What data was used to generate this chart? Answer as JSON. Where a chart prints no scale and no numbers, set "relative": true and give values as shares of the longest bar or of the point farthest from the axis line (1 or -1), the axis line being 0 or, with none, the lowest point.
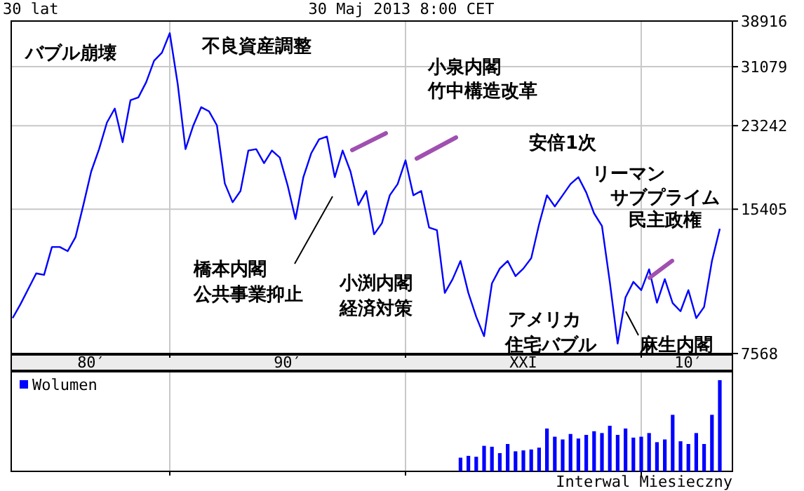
{
  "chart_data": [
    {
      "type": "line",
      "title": "30 lat",
      "subtitle": "30 Maj 2013 8:00 CET",
      "categories": [
        null,
        null,
        null,
        null,
        null,
        null,
        null,
        null,
        null,
        null,
        "80′",
        null,
        null,
        null,
        null,
        null,
        null,
        null,
        null,
        null,
        null,
        null,
        null,
        null,
        null,
        null,
        null,
        null,
        null,
        null,
        null,
        null,
        null,
        null,
        null,
        "90′",
        null,
        null,
        null,
        null,
        null,
        null,
        null,
        null,
        null,
        null,
        null,
        null,
        null,
        null,
        null,
        null,
        null,
        null,
        null,
        null,
        null,
        null,
        null,
        null,
        null,
        null,
        null,
        null,
        null,
        "XXI",
        null,
        null,
        null,
        null,
        null,
        null,
        null,
        null,
        null,
        null,
        null,
        null,
        null,
        null,
        null,
        null,
        null,
        null,
        null,
        null,
        "10′",
        null,
        null,
        null,
        null
      ],
      "series": [
        {
          "color": "#0000ff",
          "values": [
            9010,
            9650,
            10410,
            11230,
            11150,
            12790,
            12790,
            12530,
            13420,
            15720,
            18550,
            20710,
            23600,
            25290,
            21430,
            26360,
            26720,
            28800,
            32000,
            33300,
            36660,
            28620,
            20710,
            23280,
            25460,
            24940,
            23280,
            17500,
            15940,
            16850,
            20570,
            20710,
            19330,
            20570,
            19870,
            17320,
            14680,
            18040,
            20290,
            21740,
            22030,
            18040,
            20570,
            18550,
            15720,
            16850,
            13610,
            14380,
            16500,
            17440,
            19600,
            16500,
            16850,
            14080,
            13890,
            10200,
            10920,
            11940,
            10200,
            9070,
            8240,
            10690,
            11500,
            11940,
            11080,
            11500,
            12110,
            14300,
            16500,
            15620,
            16500,
            17440,
            18040,
            16730,
            15090,
            14190,
            10770,
            7950,
            9980,
            10770,
            10340,
            11460,
            9720,
            10920,
            9700,
            9320,
            10340,
            9010,
            9520,
            11940,
            13990
          ]
        }
      ],
      "ylim": [
        7568,
        38916
      ],
      "log": "y",
      "grid": true,
      "yticks": [
        7568,
        15405,
        23242,
        31079,
        38916
      ],
      "annotations": [
        "バブル崩壊",
        "不良資産調整",
        "小泉内閣",
        "竹中構造改革",
        "安倍1次",
        "リーマン",
        "サブプライム",
        {
          "text": "民主政権",
          "y": 10770
        },
        "橋本内閣",
        "公共事業抑止",
        "小渕内閣",
        "経済対策",
        "アメリカ",
        "住宅バブル",
        "麻生内閣"
      ]
    },
    {
      "type": "bar",
      "relative": true,
      "legend": "top left",
      "series": [
        {
          "name": "Wolumen",
          "color": "#0000ff",
          "values": [
            null,
            null,
            null,
            null,
            null,
            null,
            null,
            null,
            null,
            null,
            null,
            null,
            null,
            null,
            null,
            null,
            null,
            null,
            null,
            null,
            null,
            null,
            null,
            null,
            null,
            null,
            null,
            null,
            null,
            null,
            null,
            null,
            null,
            null,
            null,
            null,
            null,
            null,
            null,
            null,
            null,
            null,
            null,
            null,
            null,
            null,
            null,
            null,
            null,
            null,
            null,
            null,
            null,
            null,
            null,
            null,
            null,
            0.15,
            0.17,
            0.16,
            0.28,
            0.27,
            0.2,
            0.3,
            0.22,
            0.23,
            0.24,
            0.26,
            0.47,
            0.38,
            0.35,
            0.41,
            0.36,
            0.4,
            0.44,
            0.42,
            0.5,
            0.4,
            0.47,
            0.37,
            0.38,
            0.42,
            0.32,
            0.35,
            0.62,
            0.33,
            0.3,
            0.42,
            0.3,
            0.62,
            1.0
          ]
        }
      ],
      "annotations": [
        "Interwal Miesieczny"
      ]
    }
  ]
}
